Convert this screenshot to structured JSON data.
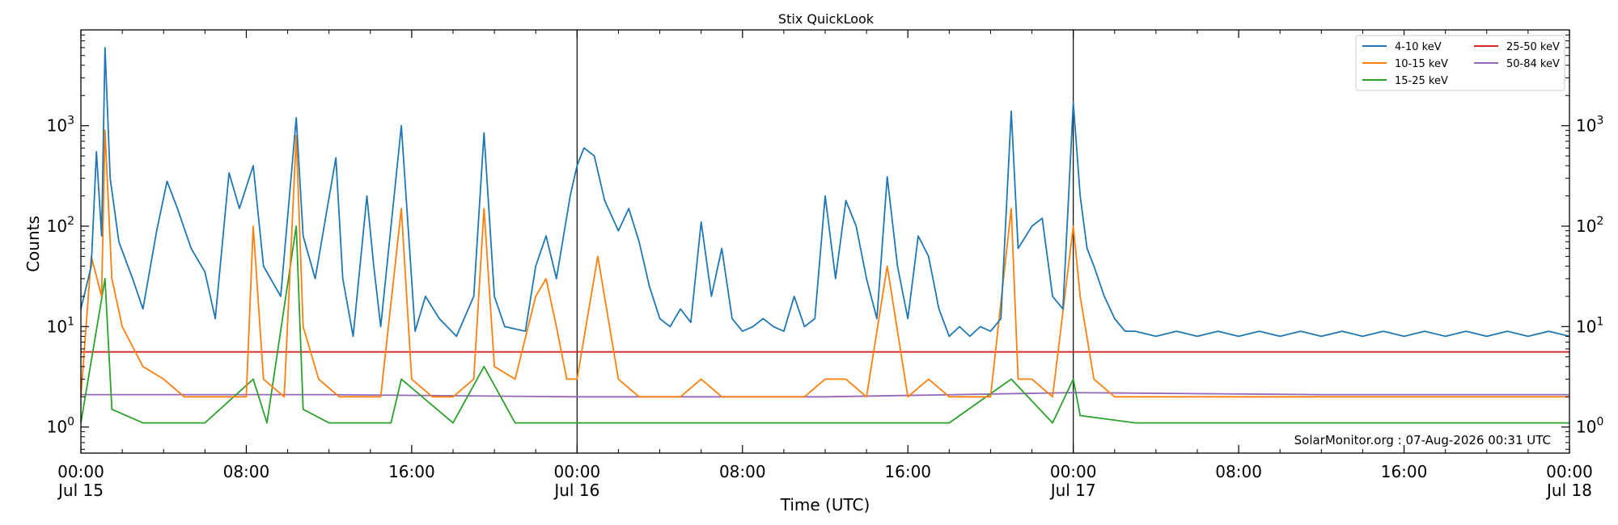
{
  "chart_data": {
    "type": "line",
    "title": "Stix QuickLook",
    "xlabel": "Time (UTC)",
    "ylabel": "Counts",
    "yscale": "log",
    "ylim": [
      0.55,
      9000
    ],
    "xlim": [
      "2026-07-15T00:00",
      "2026-07-18T00:00"
    ],
    "x_ticks": [
      {
        "time": "2026-07-15T00:00",
        "label": "00:00",
        "date_label": "Jul 15"
      },
      {
        "time": "2026-07-15T08:00",
        "label": "08:00",
        "date_label": ""
      },
      {
        "time": "2026-07-15T16:00",
        "label": "16:00",
        "date_label": ""
      },
      {
        "time": "2026-07-16T00:00",
        "label": "00:00",
        "date_label": "Jul 16"
      },
      {
        "time": "2026-07-16T08:00",
        "label": "08:00",
        "date_label": ""
      },
      {
        "time": "2026-07-16T16:00",
        "label": "16:00",
        "date_label": ""
      },
      {
        "time": "2026-07-17T00:00",
        "label": "00:00",
        "date_label": "Jul 17"
      },
      {
        "time": "2026-07-17T08:00",
        "label": "08:00",
        "date_label": ""
      },
      {
        "time": "2026-07-17T16:00",
        "label": "16:00",
        "date_label": ""
      },
      {
        "time": "2026-07-18T00:00",
        "label": "00:00",
        "date_label": "Jul 18"
      }
    ],
    "y_ticks": [
      1,
      10,
      100,
      1000
    ],
    "vertical_lines": [
      "2026-07-16T00:00",
      "2026-07-17T00:00"
    ],
    "legend": {
      "position": "top-right",
      "columns": 2
    },
    "grid": false,
    "annotation": "SolarMonitor.org : 07-Aug-2026 00:31 UTC",
    "series": [
      {
        "name": "4-10 keV",
        "color": "#1f77b4",
        "points": [
          [
            "2026-07-15T00:00",
            15
          ],
          [
            "2026-07-15T00:30",
            40
          ],
          [
            "2026-07-15T00:45",
            550
          ],
          [
            "2026-07-15T01:00",
            80
          ],
          [
            "2026-07-15T01:10",
            6000
          ],
          [
            "2026-07-15T01:25",
            300
          ],
          [
            "2026-07-15T01:50",
            70
          ],
          [
            "2026-07-15T02:30",
            30
          ],
          [
            "2026-07-15T03:00",
            15
          ],
          [
            "2026-07-15T03:40",
            90
          ],
          [
            "2026-07-15T04:10",
            280
          ],
          [
            "2026-07-15T04:40",
            150
          ],
          [
            "2026-07-15T05:20",
            60
          ],
          [
            "2026-07-15T06:00",
            35
          ],
          [
            "2026-07-15T06:30",
            12
          ],
          [
            "2026-07-15T07:10",
            340
          ],
          [
            "2026-07-15T07:40",
            150
          ],
          [
            "2026-07-15T08:20",
            400
          ],
          [
            "2026-07-15T08:50",
            40
          ],
          [
            "2026-07-15T09:40",
            20
          ],
          [
            "2026-07-15T10:25",
            1200
          ],
          [
            "2026-07-15T10:45",
            80
          ],
          [
            "2026-07-15T11:20",
            30
          ],
          [
            "2026-07-15T12:20",
            480
          ],
          [
            "2026-07-15T12:40",
            30
          ],
          [
            "2026-07-15T13:10",
            8
          ],
          [
            "2026-07-15T13:50",
            200
          ],
          [
            "2026-07-15T14:10",
            40
          ],
          [
            "2026-07-15T14:30",
            10
          ],
          [
            "2026-07-15T15:30",
            1000
          ],
          [
            "2026-07-15T16:10",
            9
          ],
          [
            "2026-07-15T16:40",
            20
          ],
          [
            "2026-07-15T17:20",
            12
          ],
          [
            "2026-07-15T18:10",
            8
          ],
          [
            "2026-07-15T19:00",
            20
          ],
          [
            "2026-07-15T19:30",
            850
          ],
          [
            "2026-07-15T20:00",
            20
          ],
          [
            "2026-07-15T20:30",
            10
          ],
          [
            "2026-07-15T21:30",
            9
          ],
          [
            "2026-07-15T22:00",
            40
          ],
          [
            "2026-07-15T22:30",
            80
          ],
          [
            "2026-07-15T23:00",
            30
          ],
          [
            "2026-07-15T23:40",
            200
          ],
          [
            "2026-07-16T00:00",
            400
          ],
          [
            "2026-07-16T00:20",
            600
          ],
          [
            "2026-07-16T00:50",
            500
          ],
          [
            "2026-07-16T01:20",
            180
          ],
          [
            "2026-07-16T02:00",
            90
          ],
          [
            "2026-07-16T02:30",
            150
          ],
          [
            "2026-07-16T03:00",
            70
          ],
          [
            "2026-07-16T03:30",
            25
          ],
          [
            "2026-07-16T04:00",
            12
          ],
          [
            "2026-07-16T04:30",
            10
          ],
          [
            "2026-07-16T05:00",
            15
          ],
          [
            "2026-07-16T05:30",
            11
          ],
          [
            "2026-07-16T06:00",
            110
          ],
          [
            "2026-07-16T06:30",
            20
          ],
          [
            "2026-07-16T07:00",
            60
          ],
          [
            "2026-07-16T07:30",
            12
          ],
          [
            "2026-07-16T08:00",
            9
          ],
          [
            "2026-07-16T08:30",
            10
          ],
          [
            "2026-07-16T09:00",
            12
          ],
          [
            "2026-07-16T09:30",
            10
          ],
          [
            "2026-07-16T10:00",
            9
          ],
          [
            "2026-07-16T10:30",
            20
          ],
          [
            "2026-07-16T11:00",
            10
          ],
          [
            "2026-07-16T11:30",
            12
          ],
          [
            "2026-07-16T12:00",
            200
          ],
          [
            "2026-07-16T12:30",
            30
          ],
          [
            "2026-07-16T13:00",
            180
          ],
          [
            "2026-07-16T13:30",
            100
          ],
          [
            "2026-07-16T14:00",
            30
          ],
          [
            "2026-07-16T14:30",
            12
          ],
          [
            "2026-07-16T15:00",
            310
          ],
          [
            "2026-07-16T15:30",
            40
          ],
          [
            "2026-07-16T16:00",
            12
          ],
          [
            "2026-07-16T16:30",
            80
          ],
          [
            "2026-07-16T17:00",
            50
          ],
          [
            "2026-07-16T17:30",
            15
          ],
          [
            "2026-07-16T18:00",
            8
          ],
          [
            "2026-07-16T18:30",
            10
          ],
          [
            "2026-07-16T19:00",
            8
          ],
          [
            "2026-07-16T19:30",
            10
          ],
          [
            "2026-07-16T20:00",
            9
          ],
          [
            "2026-07-16T20:30",
            12
          ],
          [
            "2026-07-16T21:00",
            1400
          ],
          [
            "2026-07-16T21:20",
            60
          ],
          [
            "2026-07-16T22:00",
            100
          ],
          [
            "2026-07-16T22:30",
            120
          ],
          [
            "2026-07-16T23:00",
            20
          ],
          [
            "2026-07-16T23:30",
            15
          ],
          [
            "2026-07-17T00:00",
            1700
          ],
          [
            "2026-07-17T00:20",
            200
          ],
          [
            "2026-07-17T00:40",
            60
          ],
          [
            "2026-07-17T01:00",
            40
          ],
          [
            "2026-07-17T01:30",
            20
          ],
          [
            "2026-07-17T02:00",
            12
          ],
          [
            "2026-07-17T02:30",
            9
          ],
          [
            "2026-07-17T03:00",
            9
          ],
          [
            "2026-07-17T04:00",
            8
          ],
          [
            "2026-07-17T05:00",
            9
          ],
          [
            "2026-07-17T06:00",
            8
          ],
          [
            "2026-07-17T07:00",
            9
          ],
          [
            "2026-07-17T08:00",
            8
          ],
          [
            "2026-07-17T09:00",
            9
          ],
          [
            "2026-07-17T10:00",
            8
          ],
          [
            "2026-07-17T11:00",
            9
          ],
          [
            "2026-07-17T12:00",
            8
          ],
          [
            "2026-07-17T13:00",
            9
          ],
          [
            "2026-07-17T14:00",
            8
          ],
          [
            "2026-07-17T15:00",
            9
          ],
          [
            "2026-07-17T16:00",
            8
          ],
          [
            "2026-07-17T17:00",
            9
          ],
          [
            "2026-07-17T18:00",
            8
          ],
          [
            "2026-07-17T19:00",
            9
          ],
          [
            "2026-07-17T20:00",
            8
          ],
          [
            "2026-07-17T21:00",
            9
          ],
          [
            "2026-07-17T22:00",
            8
          ],
          [
            "2026-07-17T23:00",
            9
          ],
          [
            "2026-07-18T00:00",
            8
          ]
        ]
      },
      {
        "name": "10-15 keV",
        "color": "#ff7f0e",
        "points": [
          [
            "2026-07-15T00:00",
            2
          ],
          [
            "2026-07-15T00:30",
            50
          ],
          [
            "2026-07-15T01:00",
            20
          ],
          [
            "2026-07-15T01:10",
            900
          ],
          [
            "2026-07-15T01:30",
            30
          ],
          [
            "2026-07-15T02:00",
            10
          ],
          [
            "2026-07-15T03:00",
            4
          ],
          [
            "2026-07-15T04:00",
            3
          ],
          [
            "2026-07-15T05:00",
            2
          ],
          [
            "2026-07-15T06:00",
            2
          ],
          [
            "2026-07-15T07:00",
            2
          ],
          [
            "2026-07-15T08:00",
            2
          ],
          [
            "2026-07-15T08:20",
            100
          ],
          [
            "2026-07-15T08:50",
            3
          ],
          [
            "2026-07-15T09:50",
            2
          ],
          [
            "2026-07-15T10:25",
            800
          ],
          [
            "2026-07-15T10:45",
            10
          ],
          [
            "2026-07-15T11:30",
            3
          ],
          [
            "2026-07-15T12:30",
            2
          ],
          [
            "2026-07-15T13:30",
            2
          ],
          [
            "2026-07-15T14:30",
            2
          ],
          [
            "2026-07-15T15:30",
            150
          ],
          [
            "2026-07-15T16:00",
            3
          ],
          [
            "2026-07-15T17:00",
            2
          ],
          [
            "2026-07-15T18:00",
            2
          ],
          [
            "2026-07-15T19:00",
            3
          ],
          [
            "2026-07-15T19:30",
            150
          ],
          [
            "2026-07-15T20:00",
            4
          ],
          [
            "2026-07-15T21:00",
            3
          ],
          [
            "2026-07-15T22:00",
            20
          ],
          [
            "2026-07-15T22:30",
            30
          ],
          [
            "2026-07-15T23:00",
            10
          ],
          [
            "2026-07-15T23:30",
            3
          ],
          [
            "2026-07-16T00:00",
            3
          ],
          [
            "2026-07-16T01:00",
            50
          ],
          [
            "2026-07-16T02:00",
            3
          ],
          [
            "2026-07-16T03:00",
            2
          ],
          [
            "2026-07-16T04:00",
            2
          ],
          [
            "2026-07-16T05:00",
            2
          ],
          [
            "2026-07-16T06:00",
            3
          ],
          [
            "2026-07-16T07:00",
            2
          ],
          [
            "2026-07-16T08:00",
            2
          ],
          [
            "2026-07-16T09:00",
            2
          ],
          [
            "2026-07-16T10:00",
            2
          ],
          [
            "2026-07-16T11:00",
            2
          ],
          [
            "2026-07-16T12:00",
            3
          ],
          [
            "2026-07-16T13:00",
            3
          ],
          [
            "2026-07-16T14:00",
            2
          ],
          [
            "2026-07-16T15:00",
            40
          ],
          [
            "2026-07-16T16:00",
            2
          ],
          [
            "2026-07-16T17:00",
            3
          ],
          [
            "2026-07-16T18:00",
            2
          ],
          [
            "2026-07-16T19:00",
            2
          ],
          [
            "2026-07-16T20:00",
            2
          ],
          [
            "2026-07-16T21:00",
            150
          ],
          [
            "2026-07-16T21:20",
            3
          ],
          [
            "2026-07-16T22:00",
            3
          ],
          [
            "2026-07-16T23:00",
            2
          ],
          [
            "2026-07-17T00:00",
            100
          ],
          [
            "2026-07-17T00:20",
            20
          ],
          [
            "2026-07-17T01:00",
            3
          ],
          [
            "2026-07-17T02:00",
            2
          ],
          [
            "2026-07-17T04:00",
            2
          ],
          [
            "2026-07-17T06:00",
            2
          ],
          [
            "2026-07-17T08:00",
            2
          ],
          [
            "2026-07-17T10:00",
            2
          ],
          [
            "2026-07-17T12:00",
            2
          ],
          [
            "2026-07-17T14:00",
            2
          ],
          [
            "2026-07-17T16:00",
            2
          ],
          [
            "2026-07-17T18:00",
            2
          ],
          [
            "2026-07-17T20:00",
            2
          ],
          [
            "2026-07-17T22:00",
            2
          ],
          [
            "2026-07-18T00:00",
            2
          ]
        ]
      },
      {
        "name": "15-25 keV",
        "color": "#2ca02c",
        "points": [
          [
            "2026-07-15T00:00",
            1.1
          ],
          [
            "2026-07-15T01:10",
            30
          ],
          [
            "2026-07-15T01:30",
            1.5
          ],
          [
            "2026-07-15T03:00",
            1.1
          ],
          [
            "2026-07-15T06:00",
            1.1
          ],
          [
            "2026-07-15T08:20",
            3
          ],
          [
            "2026-07-15T09:00",
            1.1
          ],
          [
            "2026-07-15T10:25",
            100
          ],
          [
            "2026-07-15T10:45",
            1.5
          ],
          [
            "2026-07-15T12:00",
            1.1
          ],
          [
            "2026-07-15T15:00",
            1.1
          ],
          [
            "2026-07-15T15:30",
            3
          ],
          [
            "2026-07-15T18:00",
            1.1
          ],
          [
            "2026-07-15T19:30",
            4
          ],
          [
            "2026-07-15T21:00",
            1.1
          ],
          [
            "2026-07-16T00:00",
            1.1
          ],
          [
            "2026-07-16T03:00",
            1.1
          ],
          [
            "2026-07-16T06:00",
            1.1
          ],
          [
            "2026-07-16T09:00",
            1.1
          ],
          [
            "2026-07-16T12:00",
            1.1
          ],
          [
            "2026-07-16T15:00",
            1.1
          ],
          [
            "2026-07-16T18:00",
            1.1
          ],
          [
            "2026-07-16T21:00",
            3
          ],
          [
            "2026-07-16T23:00",
            1.1
          ],
          [
            "2026-07-17T00:00",
            3
          ],
          [
            "2026-07-17T00:20",
            1.3
          ],
          [
            "2026-07-17T03:00",
            1.1
          ],
          [
            "2026-07-17T06:00",
            1.1
          ],
          [
            "2026-07-17T09:00",
            1.1
          ],
          [
            "2026-07-17T12:00",
            1.1
          ],
          [
            "2026-07-17T15:00",
            1.1
          ],
          [
            "2026-07-17T18:00",
            1.1
          ],
          [
            "2026-07-17T21:00",
            1.1
          ],
          [
            "2026-07-18T00:00",
            1.1
          ]
        ]
      },
      {
        "name": "25-50 keV",
        "color": "#d62728",
        "points": [
          [
            "2026-07-15T00:00",
            5.6
          ],
          [
            "2026-07-15T12:00",
            5.6
          ],
          [
            "2026-07-16T00:00",
            5.6
          ],
          [
            "2026-07-16T12:00",
            5.6
          ],
          [
            "2026-07-17T00:00",
            5.6
          ],
          [
            "2026-07-17T12:00",
            5.6
          ],
          [
            "2026-07-18T00:00",
            5.6
          ]
        ]
      },
      {
        "name": "50-84 keV",
        "color": "#9467bd",
        "points": [
          [
            "2026-07-15T00:00",
            2.1
          ],
          [
            "2026-07-15T12:00",
            2.1
          ],
          [
            "2026-07-16T00:00",
            2.0
          ],
          [
            "2026-07-16T12:00",
            2.0
          ],
          [
            "2026-07-17T00:00",
            2.2
          ],
          [
            "2026-07-17T12:00",
            2.1
          ],
          [
            "2026-07-18T00:00",
            2.1
          ]
        ]
      }
    ]
  }
}
